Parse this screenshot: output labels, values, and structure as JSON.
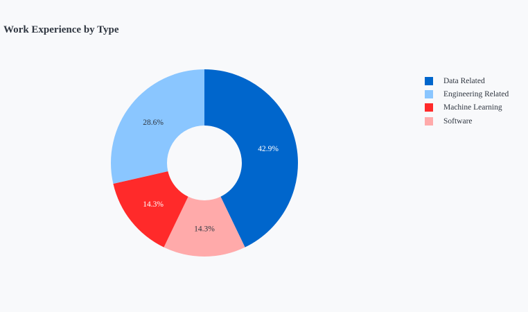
{
  "chart_data": {
    "type": "pie",
    "title": "Work Experience by Type",
    "hole": 0.4,
    "direction": "clockwise",
    "rotation_start": "top",
    "legend_position": "top-right",
    "categories": [
      "Data Related",
      "Engineering Related",
      "Machine Learning",
      "Software"
    ],
    "slice_order": [
      "Data Related",
      "Software",
      "Machine Learning",
      "Engineering Related"
    ],
    "percents": [
      42.9,
      28.6,
      14.3,
      14.3
    ],
    "percent_labels": [
      "42.9%",
      "28.6%",
      "14.3%",
      "14.3%"
    ],
    "colors": [
      "#0066cc",
      "#8ac6ff",
      "#ff2a2a",
      "#ffaaaa"
    ],
    "label_colors": [
      "#ffffff",
      "#2f3640",
      "#ffffff",
      "#2f3640"
    ]
  }
}
